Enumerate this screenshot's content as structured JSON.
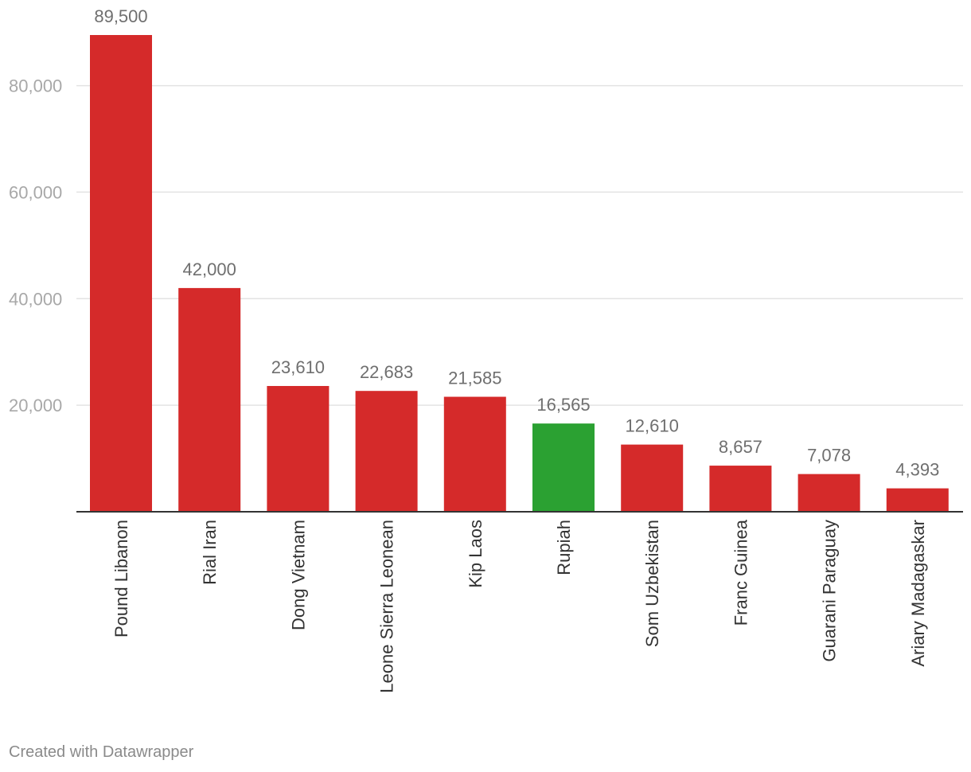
{
  "chart_data": {
    "type": "bar",
    "title": "",
    "xlabel": "",
    "ylabel": "",
    "categories": [
      "Pound Libanon",
      "Rial Iran",
      "Dong Vietnam",
      "Leone Sierra Leonean",
      "Kip Laos",
      "Rupiah",
      "Som Uzbekistan",
      "Franc Guinea",
      "Guarani Paraguay",
      "Ariary Madagaskar"
    ],
    "values": [
      89500,
      42000,
      23610,
      22683,
      21585,
      16565,
      12610,
      8657,
      7078,
      4393
    ],
    "value_labels": [
      "89,500",
      "42,000",
      "23,610",
      "22,683",
      "21,585",
      "16,565",
      "12,610",
      "8,657",
      "7,078",
      "4,393"
    ],
    "highlight_category": "Rupiah",
    "colors": {
      "default": "#d52a2a",
      "highlight": "#2ba132"
    },
    "ylim": [
      0,
      89500
    ],
    "yticks": [
      20000,
      40000,
      60000,
      80000
    ],
    "ytick_labels": [
      "20,000",
      "40,000",
      "60,000",
      "80,000"
    ],
    "grid": true,
    "legend": "none"
  },
  "footer": {
    "credit": "Created with Datawrapper"
  }
}
